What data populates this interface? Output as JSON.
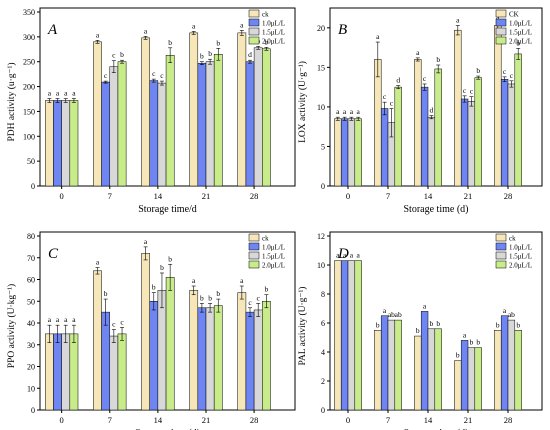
{
  "colors": {
    "ck": "#f6e6b8",
    "c10": "#6e85f2",
    "c15": "#d8d8d8",
    "c20": "#c8ec8a"
  },
  "chart_data": [
    {
      "panel": "A",
      "type": "bar",
      "xlabel": "Storage time/d",
      "ylabel": "PDH activity (u·g⁻¹)",
      "categories": [
        "0",
        "7",
        "14",
        "21",
        "28"
      ],
      "ylim": [
        0,
        350
      ],
      "yticks": [
        0,
        50,
        100,
        150,
        200,
        250,
        300,
        350
      ],
      "legend_position": "top-right",
      "series": [
        {
          "name": "ck",
          "color_key": "ck",
          "values": [
            172,
            290,
            298,
            308,
            308
          ],
          "errors": [
            4,
            3,
            3,
            3,
            5
          ],
          "letters": [
            "a",
            "a",
            "a",
            "a",
            "a"
          ]
        },
        {
          "name": "1.0μL/L",
          "color_key": "c10",
          "values": [
            172,
            209,
            212,
            247,
            250
          ],
          "errors": [
            4,
            2,
            3,
            3,
            3
          ],
          "letters": [
            "a",
            "c",
            "c",
            "b",
            "d"
          ]
        },
        {
          "name": "1.5μL/L",
          "color_key": "c15",
          "values": [
            172,
            240,
            207,
            250,
            278
          ],
          "errors": [
            4,
            12,
            4,
            5,
            3
          ],
          "letters": [
            "a",
            "c",
            "c",
            "b",
            "b"
          ]
        },
        {
          "name": "2.0μL/L",
          "color_key": "c20",
          "values": [
            172,
            250,
            263,
            265,
            276
          ],
          "errors": [
            4,
            3,
            15,
            12,
            3
          ],
          "letters": [
            "a",
            "b",
            "b",
            "b",
            "b"
          ]
        }
      ]
    },
    {
      "panel": "B",
      "type": "bar",
      "xlabel": "Storage time (d)",
      "ylabel": "LOX activity (U·g⁻¹)",
      "categories": [
        "0",
        "7",
        "14",
        "21",
        "28"
      ],
      "ylim": [
        0,
        22
      ],
      "yticks": [
        0,
        5,
        10,
        15,
        20
      ],
      "legend_position": "top-right",
      "series": [
        {
          "name": "CK",
          "color_key": "ck",
          "values": [
            8.5,
            16.0,
            16.0,
            19.7,
            20.3
          ],
          "errors": [
            0.2,
            2.2,
            0.2,
            0.6,
            0.4
          ],
          "letters": [
            "a",
            "a",
            "a",
            "a",
            "a"
          ]
        },
        {
          "name": "1.0μL/L",
          "color_key": "c10",
          "values": [
            8.5,
            9.8,
            12.5,
            11.0,
            13.5
          ],
          "errors": [
            0.2,
            0.8,
            0.4,
            0.4,
            0.3
          ],
          "letters": [
            "a",
            "c",
            "c",
            "c",
            "c"
          ]
        },
        {
          "name": "1.5μL/L",
          "color_key": "c15",
          "values": [
            8.5,
            8.0,
            8.7,
            10.7,
            12.9
          ],
          "errors": [
            0.2,
            1.8,
            0.2,
            0.6,
            0.4
          ],
          "letters": [
            "a",
            "c",
            "d",
            "c",
            "c"
          ]
        },
        {
          "name": "2.0μL/L",
          "color_key": "c20",
          "values": [
            8.5,
            12.5,
            14.8,
            13.7,
            16.7
          ],
          "errors": [
            0.2,
            0.2,
            0.5,
            0.2,
            0.7
          ],
          "letters": [
            "a",
            "d",
            "b",
            "b",
            "b"
          ]
        }
      ]
    },
    {
      "panel": "C",
      "type": "bar",
      "xlabel": "Storage time (d)",
      "ylabel": "PPO activity (U·kg⁻¹)",
      "categories": [
        "0",
        "7",
        "14",
        "21",
        "28"
      ],
      "ylim": [
        0,
        80
      ],
      "yticks": [
        0,
        10,
        20,
        30,
        40,
        50,
        60,
        70,
        80
      ],
      "legend_position": "top-right",
      "series": [
        {
          "name": "ck",
          "color_key": "ck",
          "values": [
            35,
            64,
            72,
            55,
            54
          ],
          "errors": [
            4,
            1.5,
            3,
            2,
            3
          ],
          "letters": [
            "a",
            "a",
            "a",
            "a",
            "a"
          ]
        },
        {
          "name": "1.0μL/L",
          "color_key": "c10",
          "values": [
            35,
            45,
            50,
            47,
            45
          ],
          "errors": [
            4,
            6,
            4,
            2,
            2
          ],
          "letters": [
            "a",
            "b",
            "b",
            "b",
            "c"
          ]
        },
        {
          "name": "1.5μL/L",
          "color_key": "c15",
          "values": [
            35,
            34,
            55,
            47,
            46
          ],
          "errors": [
            4,
            3,
            8,
            2,
            3
          ],
          "letters": [
            "a",
            "c",
            "b",
            "b",
            "c"
          ]
        },
        {
          "name": "2.0μL/L",
          "color_key": "c20",
          "values": [
            35,
            35,
            61,
            48,
            50
          ],
          "errors": [
            4,
            3,
            6,
            3,
            3
          ],
          "letters": [
            "a",
            "c",
            "b",
            "b",
            "b"
          ]
        }
      ]
    },
    {
      "panel": "D",
      "type": "bar",
      "xlabel": "Storage time (d)",
      "ylabel": "PAL activity (U·g⁻¹)",
      "categories": [
        "0",
        "7",
        "14",
        "21",
        "28"
      ],
      "ylim": [
        0,
        12
      ],
      "yticks": [
        0,
        2,
        4,
        6,
        8,
        10,
        12
      ],
      "legend_position": "top-right",
      "series": [
        {
          "name": "ck",
          "color_key": "ck",
          "values": [
            10.3,
            5.5,
            5.1,
            3.4,
            5.5
          ],
          "errors": [
            0,
            0,
            0,
            0,
            0
          ],
          "letters": [
            "a",
            "b",
            "b",
            "b",
            "b"
          ]
        },
        {
          "name": "1.0μL/L",
          "color_key": "c10",
          "values": [
            10.3,
            6.5,
            6.8,
            4.8,
            6.5
          ],
          "errors": [
            0,
            0,
            0,
            0,
            0
          ],
          "letters": [
            "a",
            "a",
            "a",
            "a",
            "a"
          ]
        },
        {
          "name": "1.5μL/L",
          "color_key": "c15",
          "values": [
            10.3,
            6.2,
            5.6,
            4.3,
            6.2
          ],
          "errors": [
            0,
            0,
            0,
            0,
            0
          ],
          "letters": [
            "a",
            "ab",
            "b",
            "b",
            "ab"
          ]
        },
        {
          "name": "2.0μL/L",
          "color_key": "c20",
          "values": [
            10.3,
            6.2,
            5.6,
            4.3,
            5.5
          ],
          "errors": [
            0,
            0,
            0,
            0,
            0
          ],
          "letters": [
            "a",
            "ab",
            "b",
            "b",
            "b"
          ]
        }
      ]
    }
  ]
}
